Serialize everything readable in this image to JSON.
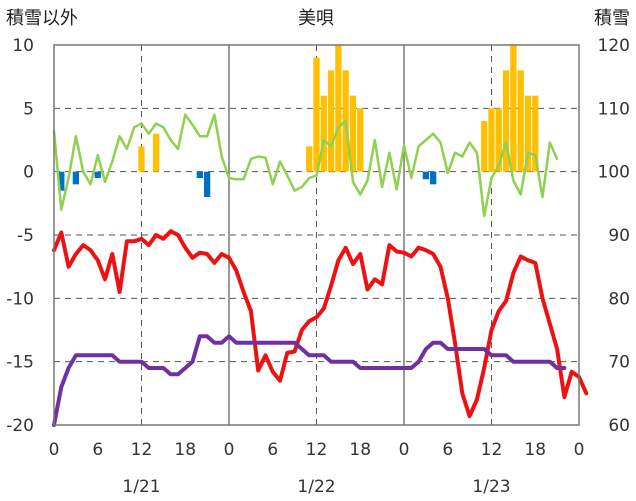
{
  "chart_data": {
    "type": "line",
    "title": "美唄",
    "left_axis_label": "積雪以外",
    "right_axis_label": "積雪",
    "y_left": {
      "min": -20,
      "max": 10,
      "ticks": [
        10,
        5,
        0,
        -5,
        -10,
        -15,
        -20
      ],
      "tick_labels": [
        "10",
        "5",
        "0",
        "-5",
        "-10",
        "-15",
        "-20"
      ]
    },
    "y_right": {
      "min": 60,
      "max": 120,
      "ticks": [
        120,
        110,
        100,
        90,
        80,
        70,
        60
      ],
      "tick_labels": [
        "120",
        "110",
        "100",
        "90",
        "80",
        "70",
        "60"
      ]
    },
    "x": {
      "min": 0,
      "max": 72,
      "ticks": [
        0,
        6,
        12,
        18,
        24,
        30,
        36,
        42,
        48,
        54,
        60,
        66,
        72
      ],
      "tick_labels": [
        "0",
        "6",
        "12",
        "18",
        "0",
        "6",
        "12",
        "18",
        "0",
        "6",
        "12",
        "18",
        "0"
      ]
    },
    "day_labels": [
      {
        "label": "1/21",
        "x": 12
      },
      {
        "label": "1/22",
        "x": 36
      },
      {
        "label": "1/23",
        "x": 60
      }
    ],
    "day_dividers": [
      24,
      48
    ],
    "dashed_hours": [
      12,
      36,
      60
    ],
    "grid": true,
    "colors": {
      "temperature": "#ee1111",
      "snow_depth": "#7030a0",
      "light_green_series": "#8fd14f",
      "snowfall_bar": "#ffc000",
      "negative_bar": "#0070c0"
    },
    "series": [
      {
        "key": "temperature",
        "axis": "left",
        "values": [
          -6.2,
          -4.8,
          -7.5,
          -6.5,
          -5.8,
          -6.2,
          -7.0,
          -8.5,
          -6.5,
          -9.5,
          -5.5,
          -5.5,
          -5.3,
          -5.8,
          -5.0,
          -5.3,
          -4.7,
          -5.0,
          -6.0,
          -6.8,
          -6.4,
          -6.5,
          -7.2,
          -6.5,
          -6.8,
          -7.8,
          -9.5,
          -11.0,
          -15.7,
          -14.5,
          -15.8,
          -16.5,
          -14.3,
          -14.2,
          -12.5,
          -11.8,
          -11.5,
          -10.8,
          -9.0,
          -7.0,
          -6.0,
          -7.3,
          -6.5,
          -9.3,
          -8.5,
          -8.9,
          -5.8,
          -6.3,
          -6.4,
          -6.7,
          -6.0,
          -6.2,
          -6.5,
          -7.5,
          -10.0,
          -13.5,
          -17.5,
          -19.3,
          -18.0,
          -15.5,
          -12.5,
          -11.0,
          -10.2,
          -8.0,
          -6.7,
          -7.0,
          -7.2,
          -10.0,
          -12.0,
          -14.0,
          -17.8,
          -15.8,
          -16.2,
          -17.5
        ]
      },
      {
        "key": "snow_depth",
        "axis": "right",
        "values": [
          60,
          66,
          69,
          71,
          71,
          71,
          71,
          71,
          71,
          70,
          70,
          70,
          70,
          69,
          69,
          69,
          68,
          68,
          69,
          70,
          74,
          74,
          73,
          73,
          74,
          73,
          73,
          73,
          73,
          73,
          73,
          73,
          73,
          73,
          72,
          71,
          71,
          71,
          70,
          70,
          70,
          70,
          69,
          69,
          69,
          69,
          69,
          69,
          69,
          69,
          70,
          72,
          73,
          73,
          72,
          72,
          72,
          72,
          72,
          72,
          71,
          71,
          71,
          70,
          70,
          70,
          70,
          70,
          70,
          69,
          69
        ]
      },
      {
        "key": "light_green_series",
        "axis": "left",
        "values": [
          3.2,
          -3.0,
          -0.5,
          2.8,
          0,
          -1.0,
          1.3,
          -0.8,
          0.8,
          2.8,
          1.8,
          3.5,
          3.8,
          3.0,
          3.8,
          3.5,
          2.5,
          1.8,
          4.5,
          3.7,
          2.8,
          2.8,
          4.5,
          1.2,
          -0.5,
          -0.6,
          -0.6,
          1.0,
          1.2,
          1.1,
          -1.0,
          0.8,
          -0.3,
          -1.5,
          -1.2,
          -0.5,
          -0.3,
          2.5,
          2.0,
          3.5,
          4.0,
          -0.8,
          -1.8,
          -0.7,
          2.5,
          -1.2,
          1.5,
          -1.4,
          2.1,
          -0.5,
          2.0,
          2.5,
          3.0,
          2.3,
          -0.1,
          1.5,
          1.2,
          2.3,
          1.5,
          -3.5,
          -0.5,
          0.5,
          2.3,
          -0.7,
          -1.8,
          1.5,
          1.3,
          -2.0,
          2.3,
          1.0
        ]
      }
    ],
    "bars": [
      {
        "key": "snowfall_bar",
        "axis": "left",
        "x": [
          12,
          14,
          35,
          36,
          37,
          38,
          39,
          40,
          41,
          42,
          59,
          60,
          61,
          62,
          63,
          64,
          65,
          66,
          67
        ],
        "values": [
          2,
          3,
          2,
          9,
          6,
          8,
          10,
          8,
          6,
          5,
          4,
          5,
          5,
          8,
          10,
          8,
          6,
          6,
          0
        ]
      },
      {
        "key": "negative_bar",
        "axis": "left",
        "x": [
          1,
          3,
          6,
          20,
          21,
          51,
          52
        ],
        "values": [
          -1.5,
          -1.0,
          -0.5,
          -0.5,
          -2.0,
          -0.6,
          -1.0
        ]
      }
    ]
  }
}
